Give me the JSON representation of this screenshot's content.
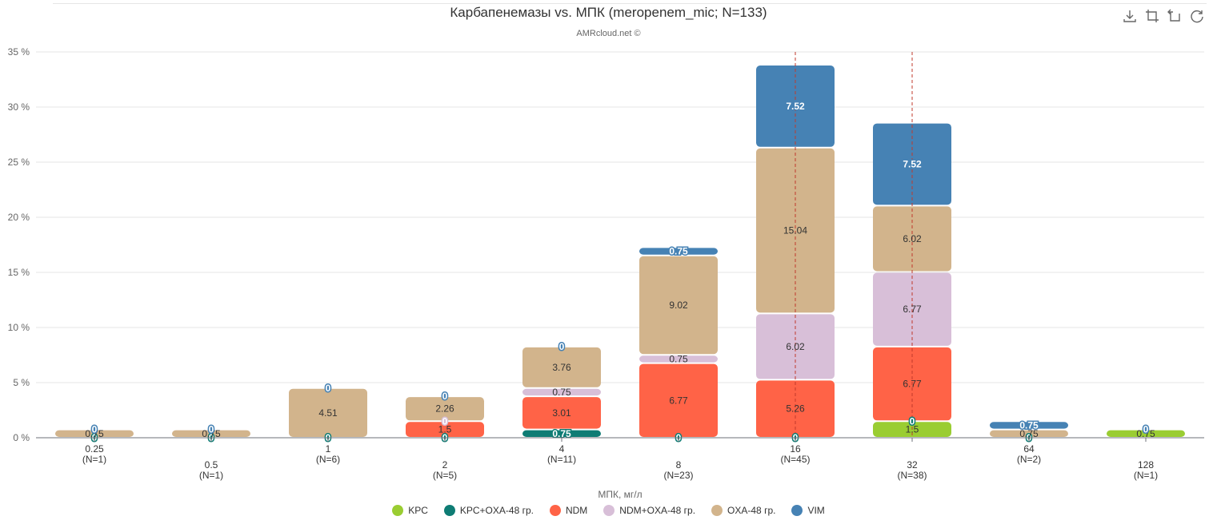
{
  "title": "Карбапенемазы vs. МПК (meropenem_mic; N=133)",
  "subtitle": "AMRcloud.net ©",
  "toolbox": {
    "icons": [
      "download-icon",
      "zoom-icon",
      "zoom-reset-icon",
      "refresh-icon"
    ]
  },
  "chart_data": {
    "type": "bar",
    "stacked": true,
    "categories": [
      "0.25",
      "0.5",
      "1",
      "2",
      "4",
      "8",
      "16",
      "32",
      "64",
      "128"
    ],
    "category_counts": [
      "(N=1)",
      "(N=1)",
      "(N=6)",
      "(N=5)",
      "(N=11)",
      "(N=23)",
      "(N=45)",
      "(N=38)",
      "(N=2)",
      "(N=1)"
    ],
    "xlabel": "МПК, мг/л",
    "ylabel": "",
    "ylim": [
      0,
      35
    ],
    "y_ticks": [
      0,
      5,
      10,
      15,
      20,
      25,
      30,
      35
    ],
    "y_tick_suffix": " %",
    "grid": true,
    "legend_position": "bottom",
    "reference_lines": [
      "16",
      "32"
    ],
    "series": [
      {
        "name": "KPC",
        "color": "#9acd32",
        "values": [
          0,
          0,
          0,
          0,
          0,
          0,
          0,
          1.5,
          0,
          0.75
        ]
      },
      {
        "name": "KPC+OXA-48 гр.",
        "color": "#0e7c74",
        "values": [
          0,
          0,
          0,
          0,
          0.75,
          0,
          0,
          0,
          0,
          0
        ]
      },
      {
        "name": "NDM",
        "color": "#ff6347",
        "values": [
          0,
          0,
          0,
          1.5,
          3.01,
          6.77,
          5.26,
          6.77,
          0,
          0
        ]
      },
      {
        "name": "NDM+OXA-48 гр.",
        "color": "#d8bfd8",
        "values": [
          0,
          0,
          0,
          0,
          0.75,
          0.75,
          6.02,
          6.77,
          0,
          0
        ]
      },
      {
        "name": "OXA-48 гр.",
        "color": "#d2b48c",
        "values": [
          0.75,
          0.75,
          4.51,
          2.26,
          3.76,
          9.02,
          15.04,
          6.02,
          0.75,
          0
        ]
      },
      {
        "name": "VIM",
        "color": "#4682b4",
        "values": [
          0,
          0,
          0,
          0,
          0,
          0.75,
          7.52,
          7.52,
          0.75,
          0
        ]
      }
    ],
    "point_labels": [
      {
        "category": "0.25",
        "series": "KPC+OXA-48 гр.",
        "text": "0"
      },
      {
        "category": "0.25",
        "series": "OXA-48 гр.",
        "text": "0.75"
      },
      {
        "category": "0.25",
        "series": "VIM",
        "text": "0"
      },
      {
        "category": "0.5",
        "series": "KPC+OXA-48 гр.",
        "text": "0"
      },
      {
        "category": "0.5",
        "series": "OXA-48 гр.",
        "text": "0.75"
      },
      {
        "category": "0.5",
        "series": "VIM",
        "text": "0"
      },
      {
        "category": "1",
        "series": "KPC+OXA-48 гр.",
        "text": "0"
      },
      {
        "category": "1",
        "series": "OXA-48 гр.",
        "text": "4.51"
      },
      {
        "category": "1",
        "series": "VIM",
        "text": "0"
      },
      {
        "category": "2",
        "series": "KPC+OXA-48 гр.",
        "text": "0"
      },
      {
        "category": "2",
        "series": "NDM",
        "text": "1.5"
      },
      {
        "category": "2",
        "series": "NDM+OXA-48 гр.",
        "text": "0"
      },
      {
        "category": "2",
        "series": "OXA-48 гр.",
        "text": "2.26"
      },
      {
        "category": "2",
        "series": "VIM",
        "text": "0"
      },
      {
        "category": "4",
        "series": "KPC+OXA-48 гр.",
        "text": "0.75"
      },
      {
        "category": "4",
        "series": "NDM",
        "text": "3.01"
      },
      {
        "category": "4",
        "series": "NDM+OXA-48 гр.",
        "text": "0.75"
      },
      {
        "category": "4",
        "series": "OXA-48 гр.",
        "text": "3.76"
      },
      {
        "category": "4",
        "series": "VIM",
        "text": "0"
      },
      {
        "category": "8",
        "series": "KPC+OXA-48 гр.",
        "text": "0"
      },
      {
        "category": "8",
        "series": "NDM",
        "text": "6.77"
      },
      {
        "category": "8",
        "series": "NDM+OXA-48 гр.",
        "text": "0.75"
      },
      {
        "category": "8",
        "series": "OXA-48 гр.",
        "text": "9.02"
      },
      {
        "category": "8",
        "series": "VIM",
        "text": "0.75"
      },
      {
        "category": "16",
        "series": "KPC+OXA-48 гр.",
        "text": "0"
      },
      {
        "category": "16",
        "series": "NDM",
        "text": "5.26"
      },
      {
        "category": "16",
        "series": "NDM+OXA-48 гр.",
        "text": "6.02"
      },
      {
        "category": "16",
        "series": "OXA-48 гр.",
        "text": "15.04"
      },
      {
        "category": "16",
        "series": "VIM",
        "text": "7.52"
      },
      {
        "category": "32",
        "series": "KPC",
        "text": "1.5"
      },
      {
        "category": "32",
        "series": "KPC+OXA-48 гр.",
        "text": "0"
      },
      {
        "category": "32",
        "series": "NDM",
        "text": "6.77"
      },
      {
        "category": "32",
        "series": "NDM+OXA-48 гр.",
        "text": "6.77"
      },
      {
        "category": "32",
        "series": "OXA-48 гр.",
        "text": "6.02"
      },
      {
        "category": "32",
        "series": "VIM",
        "text": "7.52"
      },
      {
        "category": "64",
        "series": "KPC+OXA-48 гр.",
        "text": "0"
      },
      {
        "category": "64",
        "series": "OXA-48 гр.",
        "text": "0.75"
      },
      {
        "category": "64",
        "series": "VIM",
        "text": "0.75"
      },
      {
        "category": "128",
        "series": "KPC",
        "text": "0.75"
      },
      {
        "category": "128",
        "series": "VIM",
        "text": "0"
      }
    ]
  }
}
